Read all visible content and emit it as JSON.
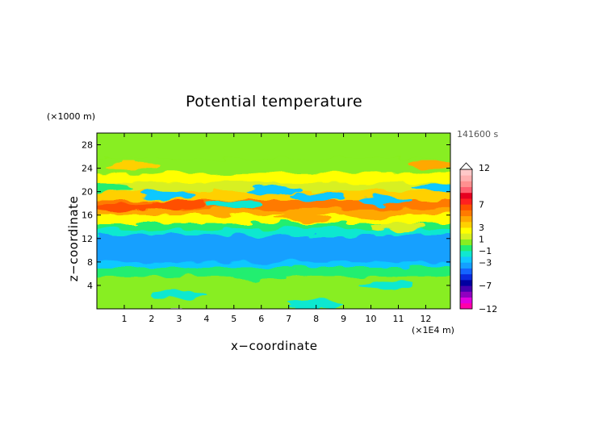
{
  "title": "Potential temperature",
  "xlabel": "x−coordinate",
  "ylabel": "z−coordinate",
  "y_unit": "(×1000 m)",
  "x_unit": "(×1E4 m)",
  "time_label": "141600 s",
  "chart_data": {
    "type": "heatmap",
    "title": "Potential temperature",
    "xlabel": "x−coordinate",
    "ylabel": "z−coordinate",
    "x_ticks": [
      1,
      2,
      3,
      4,
      5,
      6,
      7,
      8,
      9,
      10,
      11,
      12
    ],
    "y_ticks": [
      4,
      8,
      12,
      16,
      20,
      24,
      28
    ],
    "xlim": [
      0,
      12.9
    ],
    "ylim": [
      0,
      30
    ],
    "colorbar": {
      "tick_labels": [
        "12",
        "7",
        "3",
        "1",
        "−1",
        "−3",
        "−7",
        "−12"
      ],
      "levels": [
        -12,
        -10,
        -9,
        -8,
        -7,
        -6,
        -5,
        -4,
        -3,
        -2,
        -1,
        0,
        1,
        2,
        3,
        4,
        5,
        6,
        7,
        8,
        9,
        10,
        11,
        12
      ],
      "colors": [
        "#ff00aa",
        "#e000e0",
        "#9000c0",
        "#4400b0",
        "#0000a0",
        "#0a2ae0",
        "#1464ff",
        "#14a0ff",
        "#10c8ff",
        "#10e8d0",
        "#22ee70",
        "#88ee20",
        "#d8f020",
        "#ffff00",
        "#ffd000",
        "#ffa800",
        "#ff7a00",
        "#ff5000",
        "#ff2020",
        "#e60020",
        "#ff6070",
        "#ff9090",
        "#ffb0b0",
        "#ffc8c8"
      ]
    },
    "bands": [
      {
        "z": [
          0,
          1.2
        ],
        "value": 0
      },
      {
        "z": [
          1.2,
          6
        ],
        "value": 0.5
      },
      {
        "z": [
          6,
          7.5
        ],
        "value": -1
      },
      {
        "z": [
          7.5,
          8.5
        ],
        "value": -2.5
      },
      {
        "z": [
          8.5,
          13
        ],
        "value": -4
      },
      {
        "z": [
          13,
          14
        ],
        "value": -2
      },
      {
        "z": [
          14,
          15
        ],
        "value": -0.5
      },
      {
        "z": [
          15,
          16.5
        ],
        "value": 2.5
      },
      {
        "z": [
          16.5,
          17.5
        ],
        "value": 4.5
      },
      {
        "z": [
          17.5,
          19
        ],
        "value": 5.5
      },
      {
        "z": [
          19,
          20.5
        ],
        "value": 3.5
      },
      {
        "z": [
          20.5,
          22
        ],
        "value": 1
      },
      {
        "z": [
          22,
          23.5
        ],
        "value": 2
      },
      {
        "z": [
          23.5,
          26
        ],
        "value": 0.8
      },
      {
        "z": [
          26,
          30
        ],
        "value": 0.4
      }
    ],
    "blobs": [
      {
        "x": 2.2,
        "z": 17.4,
        "value": 6.5
      },
      {
        "x": 3.0,
        "z": 18.0,
        "value": 6.5
      },
      {
        "x": 0.8,
        "z": 17.3,
        "value": 6
      },
      {
        "x": 2.5,
        "z": 19.5,
        "value": -3
      },
      {
        "x": 6.5,
        "z": 20.2,
        "value": -3
      },
      {
        "x": 8.0,
        "z": 19.2,
        "value": -3
      },
      {
        "x": 10.5,
        "z": 18.5,
        "value": -3
      },
      {
        "x": 12.5,
        "z": 20.7,
        "value": -3
      },
      {
        "x": 5.0,
        "z": 17.8,
        "value": -2
      },
      {
        "x": 7.5,
        "z": 15.5,
        "value": 4
      },
      {
        "x": 10.0,
        "z": 16.2,
        "value": 4
      },
      {
        "x": 0.3,
        "z": 20.8,
        "value": -1
      },
      {
        "x": 12.3,
        "z": 24.7,
        "value": 4
      },
      {
        "x": 1.3,
        "z": 24.5,
        "value": 3
      },
      {
        "x": 11.0,
        "z": 14.0,
        "value": 1
      },
      {
        "x": 6.0,
        "z": 5.5,
        "value": -1
      },
      {
        "x": 10.5,
        "z": 4.0,
        "value": -1.5
      },
      {
        "x": 3.0,
        "z": 2.5,
        "value": -1.5
      },
      {
        "x": 8.0,
        "z": 0.8,
        "value": -1.5
      }
    ]
  }
}
